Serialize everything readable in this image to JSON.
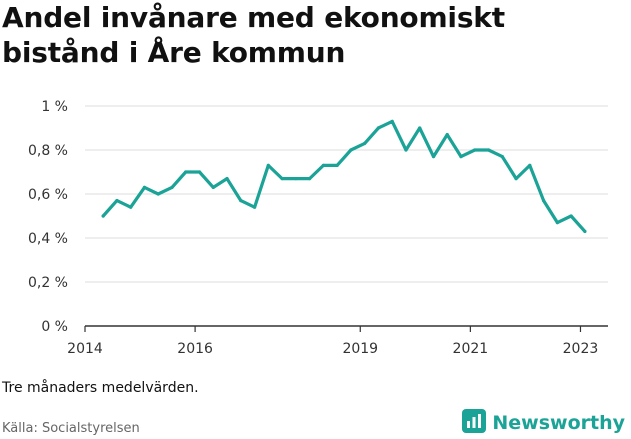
{
  "title": "Andel invånare med ekonomiskt bistånd i Åre kommun",
  "note": "Tre månaders medelvärden.",
  "source": "Källa: Socialstyrelsen",
  "brand": {
    "name": "Newsworthy",
    "icon": "bar-chart-icon",
    "color": "#1aa396"
  },
  "colors": {
    "line": "#1aa396",
    "grid": "#dddddd",
    "axis": "#333333"
  },
  "chart_data": {
    "type": "line",
    "title": "Andel invånare med ekonomiskt bistånd i Åre kommun",
    "xlabel": "",
    "ylabel": "",
    "ylim": [
      0,
      1
    ],
    "yticks": [
      0,
      0.2,
      0.4,
      0.6,
      0.8,
      1
    ],
    "ytick_labels": [
      "0 %",
      "0,2 %",
      "0,4 %",
      "0,6 %",
      "0,8 %",
      "1 %"
    ],
    "xlim": [
      2014,
      2023.5
    ],
    "xticks": [
      2014,
      2016,
      2019,
      2021,
      2023
    ],
    "xtick_labels": [
      "2014",
      "2016",
      "2019",
      "2021",
      "2023"
    ],
    "grid": true,
    "series": [
      {
        "x": [
          2014.33,
          2014.58,
          2014.83,
          2015.08,
          2015.33,
          2015.58,
          2015.83,
          2016.08,
          2016.33,
          2016.58,
          2016.83,
          2017.08,
          2017.33,
          2017.58,
          2017.83,
          2018.08,
          2018.33,
          2018.58,
          2018.83,
          2019.08,
          2019.33,
          2019.58,
          2019.83,
          2020.08,
          2020.33,
          2020.58,
          2020.83,
          2021.08,
          2021.33,
          2021.58,
          2021.83,
          2022.08,
          2022.33,
          2022.58,
          2022.83,
          2023.08
        ],
        "values": [
          0.5,
          0.57,
          0.54,
          0.63,
          0.6,
          0.63,
          0.7,
          0.7,
          0.63,
          0.67,
          0.57,
          0.54,
          0.73,
          0.67,
          0.67,
          0.67,
          0.73,
          0.73,
          0.8,
          0.83,
          0.9,
          0.93,
          0.8,
          0.9,
          0.77,
          0.87,
          0.77,
          0.8,
          0.8,
          0.77,
          0.67,
          0.73,
          0.57,
          0.47,
          0.5,
          0.43
        ]
      }
    ]
  }
}
